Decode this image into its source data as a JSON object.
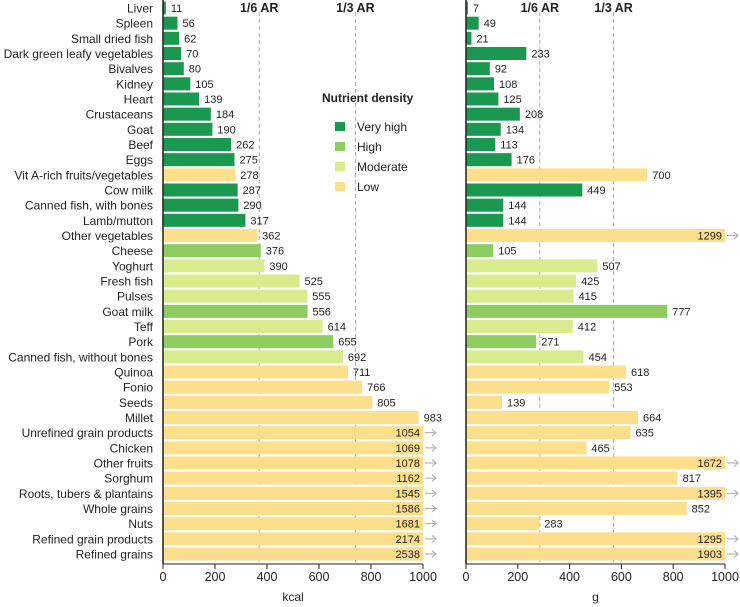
{
  "chart_data": {
    "type": "bar",
    "orientation": "horizontal",
    "categories": [
      "Liver",
      "Spleen",
      "Small dried fish",
      "Dark green leafy vegetables",
      "Bivalves",
      "Kidney",
      "Heart",
      "Crustaceans",
      "Goat",
      "Beef",
      "Eggs",
      "Vit A-rich fruits/vegetables",
      "Cow milk",
      "Canned fish, with bones",
      "Lamb/mutton",
      "Other vegetables",
      "Cheese",
      "Yoghurt",
      "Fresh fish",
      "Pulses",
      "Goat milk",
      "Teff",
      "Pork",
      "Canned fish, without bones",
      "Quinoa",
      "Fonio",
      "Seeds",
      "Millet",
      "Unrefined grain products",
      "Chicken",
      "Other fruits",
      "Sorghum",
      "Roots, tubers & plantains",
      "Whole grains",
      "Nuts",
      "Refined grain products",
      "Refined grains"
    ],
    "density": [
      "very_high",
      "very_high",
      "very_high",
      "very_high",
      "very_high",
      "very_high",
      "very_high",
      "very_high",
      "very_high",
      "very_high",
      "very_high",
      "low",
      "very_high",
      "very_high",
      "very_high",
      "low",
      "high",
      "moderate",
      "moderate",
      "moderate",
      "high",
      "moderate",
      "high",
      "moderate",
      "low",
      "low",
      "low",
      "low",
      "low",
      "low",
      "low",
      "low",
      "low",
      "low",
      "low",
      "low",
      "low"
    ],
    "series": [
      {
        "name": "kcal",
        "xlabel": "kcal",
        "values": [
          11,
          56,
          62,
          70,
          80,
          105,
          139,
          184,
          190,
          262,
          275,
          278,
          287,
          290,
          317,
          362,
          376,
          390,
          525,
          555,
          556,
          614,
          655,
          692,
          711,
          766,
          805,
          983,
          1054,
          1069,
          1078,
          1162,
          1545,
          1586,
          1681,
          2174,
          2538
        ],
        "xlim": [
          0,
          1000
        ],
        "ticks": [
          "0",
          "200",
          "400",
          "600",
          "800",
          "1000"
        ],
        "ref_lines": [
          {
            "label": "1/6 AR",
            "value": 370
          },
          {
            "label": "1/3 AR",
            "value": 740
          }
        ]
      },
      {
        "name": "g",
        "xlabel": "g",
        "values": [
          7,
          49,
          21,
          233,
          92,
          108,
          125,
          208,
          134,
          113,
          176,
          700,
          449,
          144,
          144,
          1299,
          105,
          507,
          425,
          415,
          777,
          412,
          271,
          454,
          618,
          553,
          139,
          664,
          635,
          465,
          1672,
          817,
          1395,
          852,
          283,
          1295,
          1903
        ],
        "xlim": [
          0,
          1000
        ],
        "ticks": [
          "0",
          "200",
          "400",
          "600",
          "800",
          "1000"
        ],
        "ref_lines": [
          {
            "label": "1/6 AR",
            "value": 285
          },
          {
            "label": "1/3 AR",
            "value": 570
          }
        ]
      }
    ],
    "legend": {
      "title": "Nutrient density",
      "placement": "center",
      "items": [
        {
          "key": "very_high",
          "label": "Very high",
          "color": "#1a9850"
        },
        {
          "key": "high",
          "label": "High",
          "color": "#8fcc5f"
        },
        {
          "key": "moderate",
          "label": "Moderate",
          "color": "#d9ec8d"
        },
        {
          "key": "low",
          "label": "Low",
          "color": "#fddf8b"
        }
      ]
    },
    "overflow_marker": "→",
    "grid": false
  }
}
